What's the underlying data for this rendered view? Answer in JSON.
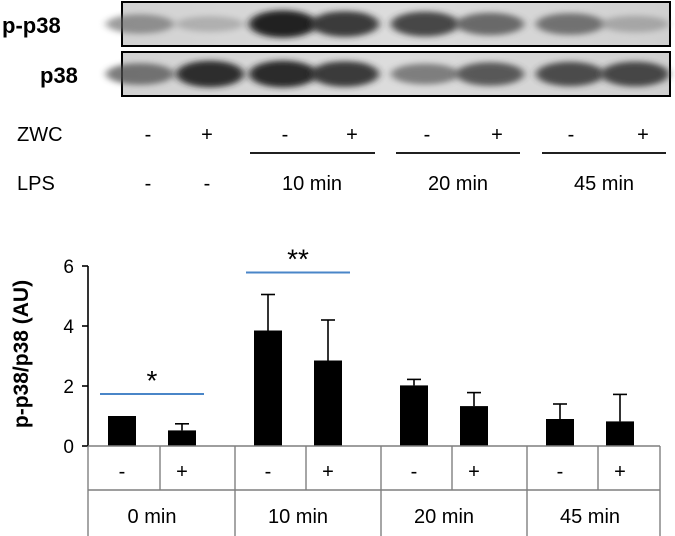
{
  "blot": {
    "lanes": 8,
    "rows": [
      {
        "label": "p-p38",
        "intensity": [
          0.45,
          0.22,
          0.95,
          0.85,
          0.8,
          0.65,
          0.6,
          0.28
        ]
      },
      {
        "label": "p38",
        "intensity": [
          0.6,
          0.9,
          0.92,
          0.85,
          0.55,
          0.72,
          0.78,
          0.8
        ]
      }
    ]
  },
  "treatment_table": {
    "zwc_label": "ZWC",
    "zwc_values": [
      "-",
      "+",
      "-",
      "+",
      "-",
      "+",
      "-",
      "+"
    ],
    "lps_label": "LPS",
    "lps_values": [
      "-",
      "-",
      "10 min",
      "20 min",
      "45 min"
    ]
  },
  "chart_data": {
    "type": "bar",
    "ylabel": "p-p38/p38 (AU)",
    "ylim": [
      0,
      6
    ],
    "yticks": [
      "0",
      "2",
      "4",
      "6"
    ],
    "groups": [
      "0 min",
      "10 min",
      "20 min",
      "45 min"
    ],
    "zwc_labels": [
      "-",
      "+",
      "-",
      "+",
      "-",
      "+",
      "-",
      "+"
    ],
    "values": [
      1.0,
      0.52,
      3.85,
      2.85,
      2.02,
      1.33,
      0.9,
      0.82
    ],
    "errors": [
      0.0,
      0.22,
      1.2,
      1.35,
      0.2,
      0.45,
      0.5,
      0.9
    ],
    "bar_color": "#000000",
    "significance": [
      {
        "bars": [
          0,
          1
        ],
        "label": "*",
        "line_color": "#4a86c8"
      },
      {
        "bars": [
          2,
          3
        ],
        "label": "**",
        "line_color": "#4a86c8"
      }
    ]
  }
}
